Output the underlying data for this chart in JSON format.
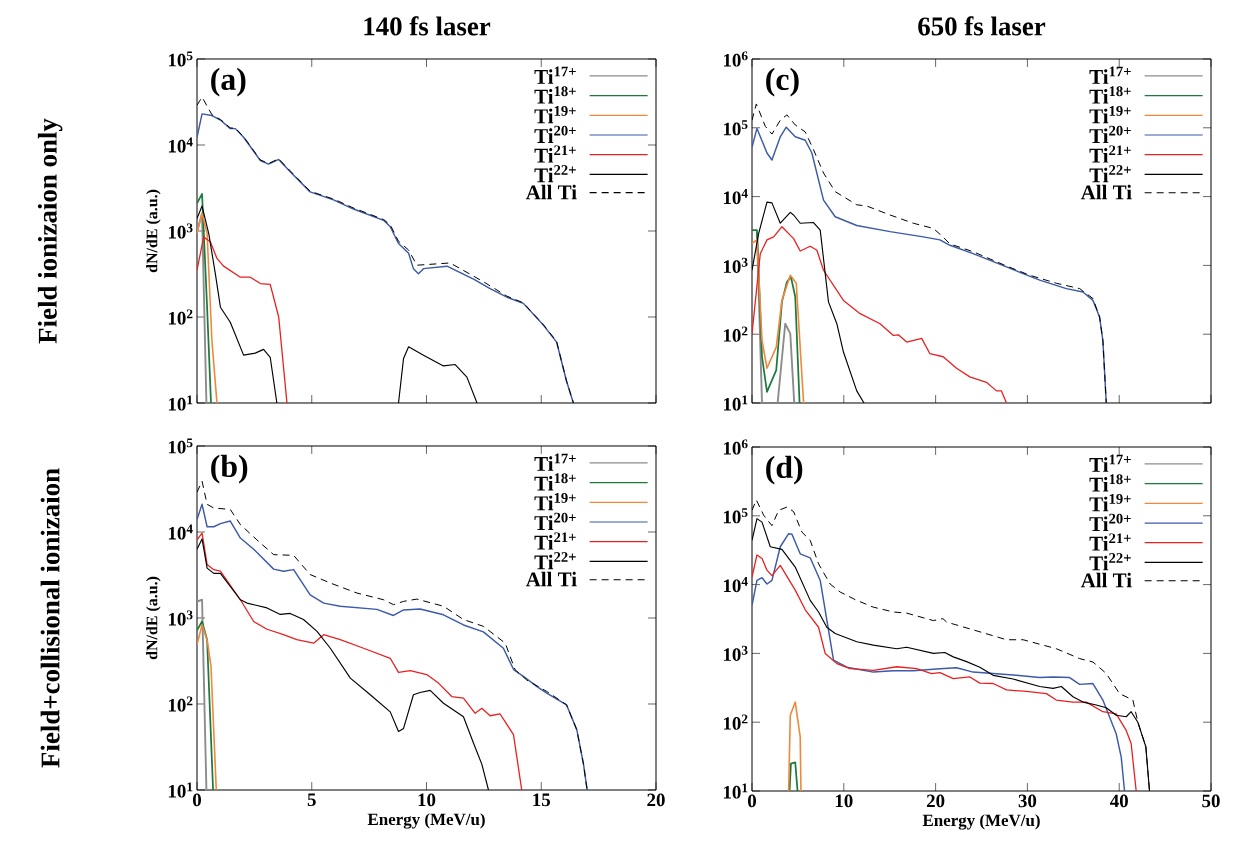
{
  "chart_data": [
    {
      "type": "line",
      "title": "140 fs laser",
      "ylabel": "dN/dE (a.u.)",
      "log": "y",
      "legend": "top right",
      "tick_labels": "y",
      "annotations": [
        "(a)",
        "Field ionizaion only"
      ],
      "xlim": [
        0,
        20
      ],
      "xticks": [
        0,
        5,
        10,
        15,
        20
      ],
      "ylim": [
        10,
        100000
      ],
      "yticks": [
        {
          "value": 10,
          "label": "10$^{1}$"
        },
        {
          "value": 100,
          "label": "10$^{2}$"
        },
        {
          "value": 1000,
          "label": "10$^{3}$"
        },
        {
          "value": 10000,
          "label": "10$^{4}$"
        },
        {
          "value": 100000,
          "label": "10$^{5}$"
        }
      ],
      "series": [
        {
          "name": "Ti$^{17+}$",
          "color": "#8c8c8c",
          "x": [
            0,
            0.22,
            0.41
          ],
          "values": [
            1000,
            1600,
            10
          ]
        },
        {
          "name": "Ti$^{18+}$",
          "color": "#1e7a3c",
          "x": [
            0,
            0.22,
            0.44,
            0.61
          ],
          "values": [
            2100,
            2700,
            130,
            10
          ]
        },
        {
          "name": "Ti$^{19+}$",
          "color": "#f0883c",
          "x": [
            0,
            0.22,
            0.44,
            0.65,
            0.87
          ],
          "values": [
            940,
            1600,
            940,
            53,
            10
          ]
        },
        {
          "name": "Ti$^{20+}$",
          "color": "#3c5aa8",
          "x": [
            0,
            0.22,
            0.65,
            1.02,
            1.45,
            1.67,
            2.03,
            2.76,
            3.12,
            3.56,
            4.06,
            4.93,
            5.95,
            6.82,
            8.13,
            8.42,
            8.78,
            9.22,
            9.43,
            9.65,
            9.87,
            10.89,
            12.05,
            12.77,
            13.5,
            14.22,
            15.1,
            15.67,
            16.1,
            16.4
          ],
          "values": [
            12300,
            23000,
            22000,
            19500,
            15500,
            15500,
            12300,
            6600,
            6000,
            6800,
            4900,
            2850,
            2300,
            1800,
            1330,
            1120,
            715,
            550,
            365,
            318,
            365,
            390,
            275,
            214,
            170,
            144,
            80,
            51,
            18,
            10
          ]
        },
        {
          "name": "Ti$^{21+}$",
          "color": "#e82020",
          "x": [
            0,
            0.29,
            0.58,
            0.87,
            1.16,
            1.89,
            2.32,
            2.76,
            3.19,
            3.56,
            3.92
          ],
          "values": [
            350,
            850,
            750,
            480,
            390,
            290,
            290,
            245,
            240,
            100,
            10
          ]
        },
        {
          "name": "Ti$^{22+}$",
          "color": "#000000",
          "x": [
            0,
            0.22,
            0.51,
            0.8,
            1.02,
            1.45,
            2.03,
            2.54,
            2.9,
            3.19,
            3.48,
            6,
            8.78,
            9.0,
            9.22,
            9.87,
            10.74,
            11.25,
            11.76,
            12.2
          ],
          "values": [
            1400,
            1950,
            940,
            318,
            130,
            87,
            36,
            38,
            42,
            34,
            10,
            null,
            10,
            33,
            45,
            36,
            27,
            28,
            20,
            10
          ]
        },
        {
          "name": "All Ti",
          "color": "#000000",
          "line_style": "dashed",
          "x": [
            0,
            0.22,
            0.65,
            1.02,
            1.45,
            1.67,
            2.03,
            2.76,
            3.12,
            3.56,
            4.06,
            4.93,
            5.95,
            6.82,
            8.13,
            8.42,
            8.78,
            9.22,
            9.58,
            11.03,
            12.48,
            13.5,
            14.22,
            15.1,
            15.67,
            16.1,
            16.4
          ],
          "values": [
            29000,
            36000,
            22500,
            19800,
            15800,
            15700,
            12500,
            6700,
            6100,
            6900,
            5000,
            2900,
            2350,
            1850,
            1360,
            1180,
            760,
            600,
            400,
            425,
            257,
            175,
            146,
            81,
            52,
            18,
            10
          ]
        }
      ]
    },
    {
      "type": "line",
      "title": "650 fs laser",
      "log": "y",
      "legend": "top right",
      "tick_labels": "y",
      "annotations": [
        "(c)"
      ],
      "xlim": [
        0,
        50
      ],
      "xticks": [
        0,
        10,
        20,
        30,
        40,
        50
      ],
      "ylim": [
        10,
        1000000
      ],
      "yticks": [
        {
          "value": 10,
          "label": "10$^{1}$"
        },
        {
          "value": 100,
          "label": "10$^{2}$"
        },
        {
          "value": 1000,
          "label": "10$^{3}$"
        },
        {
          "value": 10000,
          "label": "10$^{4}$"
        },
        {
          "value": 100000,
          "label": "10$^{5}$"
        },
        {
          "value": 1000000,
          "label": "10$^{6}$"
        }
      ],
      "series": [
        {
          "name": "Ti$^{17+}$",
          "color": "#8c8c8c",
          "x": [
            0.54,
            1.09,
            2.0,
            2.79,
            3.62,
            4.17,
            4.6
          ],
          "values": [
            3000,
            10,
            null,
            10,
            142,
            102,
            10
          ]
        },
        {
          "name": "Ti$^{18+}$",
          "color": "#1e7a3c",
          "x": [
            0,
            0.54,
            1.09,
            1.63,
            2.64,
            3.26,
            3.8,
            4.24,
            4.71,
            5.18
          ],
          "values": [
            3250,
            3250,
            47,
            14.5,
            30,
            295,
            575,
            680,
            350,
            10
          ]
        },
        {
          "name": "Ti$^{19+}$",
          "color": "#f0883c",
          "x": [
            0,
            0.54,
            1.09,
            1.63,
            2.64,
            3.26,
            4.17,
            4.82,
            5.62
          ],
          "values": [
            2100,
            2350,
            81,
            32,
            65,
            310,
            720,
            550,
            10
          ]
        },
        {
          "name": "Ti$^{20+}$",
          "color": "#3c5aa8",
          "x": [
            0,
            0.54,
            1.63,
            2.17,
            3.08,
            3.73,
            4.71,
            5.8,
            6.52,
            7.79,
            9.06,
            11.41,
            15.04,
            18.66,
            20.47,
            21.56,
            24.09,
            27.72,
            29.53,
            31.34,
            34.24,
            36.05,
            37.14,
            37.86,
            38.22,
            38.59
          ],
          "values": [
            52000,
            98000,
            43000,
            34000,
            74000,
            102000,
            74000,
            66000,
            43000,
            8900,
            5100,
            3800,
            3100,
            2600,
            2350,
            1960,
            1480,
            950,
            760,
            610,
            460,
            410,
            310,
            178,
            81,
            10
          ]
        },
        {
          "name": "Ti$^{21+}$",
          "color": "#e82020",
          "x": [
            0,
            0.9,
            1.63,
            2.36,
            3.26,
            4.53,
            5.25,
            6.34,
            7.07,
            7.79,
            9.96,
            11.78,
            13.95,
            15.4,
            15.94,
            16.85,
            18.48,
            19.38,
            20.83,
            22.28,
            23.73,
            25.54,
            26.63,
            27.17,
            27.72
          ],
          "values": [
            102,
            1480,
            2350,
            2600,
            3650,
            2450,
            1620,
            1900,
            1660,
            850,
            310,
            199,
            142,
            96,
            98,
            77,
            87,
            52,
            47,
            32,
            24,
            20,
            15,
            15,
            10
          ]
        },
        {
          "name": "Ti$^{22+}$",
          "color": "#000000",
          "x": [
            0,
            0.72,
            1.63,
            2.17,
            3.08,
            4.17,
            4.53,
            5.25,
            6.7,
            7.43,
            8.33,
            9.24,
            9.96,
            11.41,
            12.2
          ],
          "values": [
            850,
            2900,
            8300,
            8100,
            4100,
            5900,
            5400,
            4100,
            4200,
            3250,
            295,
            142,
            55,
            15,
            10
          ]
        },
        {
          "name": "All Ti",
          "color": "#000000",
          "line_style": "dashed",
          "x": [
            0,
            0.47,
            1.45,
            2.17,
            3.08,
            3.8,
            4.71,
            5.8,
            6.7,
            7.79,
            9.06,
            11.41,
            12.5,
            15.04,
            17.57,
            19.75,
            20.8,
            21.56,
            24.09,
            27.72,
            30.25,
            33.15,
            35.69,
            37.14,
            37.86,
            38.22,
            38.59
          ],
          "values": [
            129000,
            222000,
            105000,
            81000,
            129000,
            154000,
            110000,
            87000,
            48000,
            22000,
            11800,
            7600,
            7300,
            5400,
            4100,
            3450,
            2600,
            2050,
            1580,
            980,
            720,
            550,
            460,
            330,
            178,
            81,
            10
          ]
        }
      ]
    },
    {
      "type": "line",
      "xlabel": "Energy (MeV/u)",
      "ylabel": "dN/dE (a.u.)",
      "log": "y",
      "legend": "top right",
      "annotations": [
        "(b)",
        "Field+collisional ionizaion"
      ],
      "xlim": [
        0,
        20
      ],
      "xticks": [
        0,
        5,
        10,
        15,
        20
      ],
      "ylim": [
        10,
        100000
      ],
      "yticks": [
        {
          "value": 10,
          "label": "10$^{1}$"
        },
        {
          "value": 100,
          "label": "10$^{2}$"
        },
        {
          "value": 1000,
          "label": "10$^{3}$"
        },
        {
          "value": 10000,
          "label": "10$^{4}$"
        },
        {
          "value": 100000,
          "label": "10$^{5}$"
        }
      ],
      "series": [
        {
          "name": "Ti$^{17+}$",
          "color": "#8c8c8c",
          "x": [
            0,
            0.22,
            0.41
          ],
          "values": [
            1550,
            1630,
            10
          ]
        },
        {
          "name": "Ti$^{18+}$",
          "color": "#1e7a3c",
          "x": [
            0,
            0.22,
            0.44,
            0.7
          ],
          "values": [
            720,
            910,
            560,
            10
          ]
        },
        {
          "name": "Ti$^{19+}$",
          "color": "#f0883c",
          "x": [
            0,
            0.22,
            0.44,
            0.61,
            0.84
          ],
          "values": [
            490,
            830,
            560,
            275,
            10
          ]
        },
        {
          "name": "Ti$^{20+}$",
          "color": "#3c5aa8",
          "x": [
            0,
            0.22,
            0.44,
            0.73,
            1.02,
            1.45,
            1.89,
            2.47,
            3.34,
            3.77,
            4.21,
            4.93,
            5.52,
            6.24,
            7.84,
            8.56,
            9.0,
            9.72,
            10.74,
            11.61,
            12.48,
            13.35,
            13.8,
            14.22,
            14.8,
            15.24,
            16.1,
            16.55,
            16.84,
            17.0
          ],
          "values": [
            14000,
            21000,
            11500,
            11500,
            12500,
            13400,
            8500,
            6300,
            3700,
            3500,
            3650,
            1860,
            1490,
            1370,
            1260,
            1070,
            1240,
            1270,
            1090,
            830,
            690,
            445,
            250,
            210,
            160,
            134,
            98,
            50,
            20,
            10
          ]
        },
        {
          "name": "Ti$^{21+}$",
          "color": "#e82020",
          "x": [
            0,
            0.22,
            0.44,
            0.73,
            1.02,
            1.89,
            2.47,
            3.05,
            3.77,
            4.35,
            5.08,
            5.52,
            6.24,
            7.26,
            8.42,
            8.78,
            9.29,
            10.01,
            10.52,
            11.1,
            11.61,
            12.12,
            12.41,
            12.77,
            13.2,
            13.79,
            14.15
          ],
          "values": [
            8100,
            9700,
            4200,
            3650,
            3500,
            1630,
            910,
            740,
            640,
            560,
            510,
            640,
            560,
            445,
            340,
            233,
            245,
            220,
            175,
            122,
            117,
            78,
            89,
            73,
            77,
            44,
            10
          ]
        },
        {
          "name": "Ti$^{22+}$",
          "color": "#000000",
          "x": [
            0,
            0.22,
            0.44,
            0.73,
            1.02,
            1.89,
            2.18,
            3.05,
            3.63,
            4.06,
            4.64,
            5.23,
            5.81,
            6.68,
            7.55,
            8.42,
            8.78,
            9.0,
            9.43,
            9.72,
            10.16,
            10.74,
            11.61,
            12.05,
            12.41,
            12.7
          ],
          "values": [
            6300,
            8300,
            3800,
            3300,
            3300,
            1630,
            1490,
            1310,
            1100,
            1130,
            960,
            700,
            445,
            200,
            128,
            81,
            48,
            52,
            128,
            136,
            144,
            102,
            71,
            35,
            20,
            10
          ]
        },
        {
          "name": "All Ti",
          "color": "#000000",
          "line_style": "dashed",
          "x": [
            0,
            0.22,
            0.44,
            0.73,
            1.45,
            1.89,
            2.61,
            3.34,
            4.21,
            4.93,
            5.81,
            6.97,
            8.13,
            8.56,
            9.0,
            9.58,
            10.74,
            11.61,
            12.48,
            13.43,
            13.86,
            14.37,
            15.24,
            16.1,
            16.55,
            16.84,
            17.0
          ],
          "values": [
            29000,
            39000,
            21000,
            19000,
            18300,
            12200,
            8100,
            5450,
            5350,
            3200,
            2550,
            1950,
            1630,
            1430,
            1560,
            1660,
            1370,
            960,
            800,
            510,
            250,
            190,
            140,
            98,
            50,
            20,
            10
          ]
        }
      ]
    },
    {
      "type": "line",
      "xlabel": "Energy (MeV/u)",
      "log": "y",
      "legend": "top right",
      "annotations": [
        "(d)"
      ],
      "xlim": [
        0,
        50
      ],
      "xticks": [
        0,
        10,
        20,
        30,
        40,
        50
      ],
      "ylim": [
        10,
        1000000
      ],
      "yticks": [
        {
          "value": 10,
          "label": "10$^{1}$"
        },
        {
          "value": 100,
          "label": "10$^{2}$"
        },
        {
          "value": 1000,
          "label": "10$^{3}$"
        },
        {
          "value": 10000,
          "label": "10$^{4}$"
        },
        {
          "value": 100000,
          "label": "10$^{5}$"
        },
        {
          "value": 1000000,
          "label": "10$^{6}$"
        }
      ],
      "series": [
        {
          "name": "Ti$^{17+}$",
          "color": "#8c8c8c"
        },
        {
          "name": "Ti$^{18+}$",
          "color": "#1e7a3c",
          "x": [
            4.09,
            4.24,
            4.71,
            4.96
          ],
          "values": [
            10,
            25,
            26,
            10
          ]
        },
        {
          "name": "Ti$^{19+}$",
          "color": "#f0883c",
          "x": [
            3.99,
            4.17,
            4.71,
            5.25,
            5.33
          ],
          "values": [
            10,
            126,
            196,
            61,
            10
          ]
        },
        {
          "name": "Ti$^{20+}$",
          "color": "#3c5aa8",
          "x": [
            0,
            0.54,
            1.09,
            1.63,
            2.17,
            3.08,
            3.99,
            4.35,
            5.25,
            6.34,
            7.43,
            8.88,
            10.33,
            13.22,
            15.4,
            17.57,
            20.47,
            22.28,
            24.09,
            26.27,
            28.8,
            31.34,
            32.79,
            34.6,
            35.69,
            37.14,
            38.22,
            39.67,
            40.22,
            40.58
          ],
          "values": [
            5000,
            11500,
            12600,
            10200,
            11500,
            35500,
            55000,
            54000,
            28000,
            24500,
            11500,
            800,
            630,
            535,
            560,
            560,
            600,
            620,
            535,
            510,
            480,
            445,
            455,
            445,
            355,
            365,
            210,
            68,
            31,
            10
          ]
        },
        {
          "name": "Ti$^{21+}$",
          "color": "#e82020",
          "x": [
            0,
            0.54,
            1.09,
            1.63,
            2.17,
            3.08,
            4.71,
            5.8,
            7.25,
            7.97,
            9.24,
            10.69,
            13.22,
            15.76,
            17.93,
            19.56,
            20.47,
            21.92,
            23.73,
            24.82,
            26.27,
            27.72,
            29.89,
            32.07,
            33.15,
            34.96,
            36.41,
            38.22,
            39.67,
            40.76,
            41.3,
            41.85
          ],
          "values": [
            12900,
            27000,
            24000,
            16200,
            13500,
            19000,
            8300,
            4300,
            2400,
            1000,
            710,
            600,
            565,
            640,
            600,
            510,
            525,
            430,
            455,
            370,
            365,
            295,
            280,
            260,
            210,
            196,
            196,
            142,
            132,
            76,
            49,
            10
          ]
        },
        {
          "name": "Ti$^{22+}$",
          "color": "#000000",
          "x": [
            0,
            0.54,
            1.09,
            1.99,
            3.26,
            4.71,
            6.34,
            7.25,
            8.15,
            9.06,
            11.41,
            13.22,
            15.76,
            16.85,
            19.75,
            21.0,
            21.92,
            23.37,
            24.82,
            26.27,
            28.44,
            31.34,
            32.79,
            33.7,
            34.96,
            36.05,
            37.5,
            38.59,
            39.67,
            40.76,
            41.3,
            42.03,
            42.9,
            43.3
          ],
          "values": [
            44000,
            91000,
            81000,
            35500,
            32500,
            18000,
            5900,
            4000,
            2400,
            1950,
            1480,
            1320,
            1170,
            1230,
            1000,
            1030,
            890,
            760,
            630,
            480,
            425,
            330,
            310,
            330,
            234,
            196,
            178,
            162,
            126,
            120,
            142,
            100,
            44,
            10
          ]
        },
        {
          "name": "All Ti",
          "color": "#000000",
          "line_style": "dashed",
          "x": [
            0,
            0.47,
            1.27,
            2.17,
            2.9,
            3.8,
            4.53,
            5.43,
            6.34,
            7.25,
            8.51,
            9.6,
            11.41,
            13.22,
            15.4,
            16.85,
            19.75,
            20.8,
            21.2,
            24.09,
            27.72,
            29.53,
            33.15,
            35.69,
            37.14,
            38.59,
            40.04,
            41.49,
            42.03,
            42.9,
            43.3
          ],
          "values": [
            120000,
            170000,
            102000,
            72000,
            120000,
            134000,
            115000,
            58000,
            44000,
            20000,
            10200,
            7800,
            5900,
            4700,
            4000,
            3850,
            3000,
            3200,
            2850,
            2200,
            1580,
            1580,
            1170,
            840,
            750,
            510,
            260,
            210,
            100,
            44,
            10
          ]
        }
      ]
    }
  ]
}
